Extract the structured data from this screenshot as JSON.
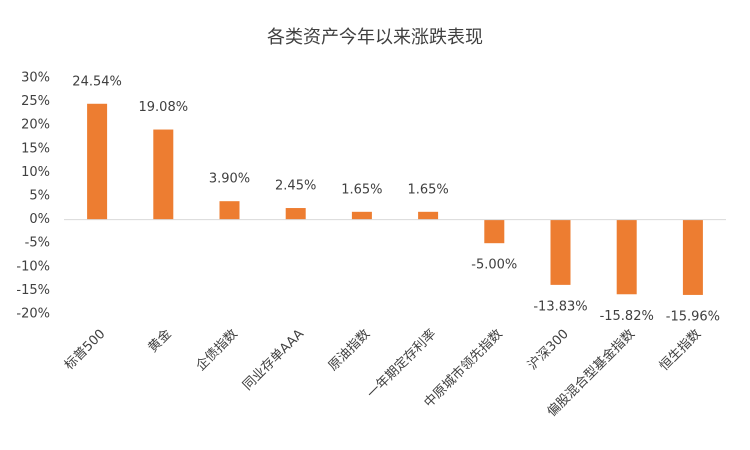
{
  "chart_data": {
    "type": "bar",
    "title": "各类资产今年以来涨跌表现",
    "categories": [
      "标普500",
      "黄金",
      "企债指数",
      "同业存单AAA",
      "原油指数",
      "一年期定存利率",
      "中原城市领先指数",
      "沪深300",
      "偏股混合型基金指数",
      "恒生指数"
    ],
    "values": [
      24.54,
      19.08,
      3.9,
      2.45,
      1.65,
      1.65,
      -5.0,
      -13.83,
      -15.82,
      -15.96
    ],
    "value_labels": [
      "24.54%",
      "19.08%",
      "3.90%",
      "2.45%",
      "1.65%",
      "1.65%",
      "-5.00%",
      "-13.83%",
      "-15.82%",
      "-15.96%"
    ],
    "color": "#ed7d31",
    "ylim": [
      -20,
      30
    ],
    "yticks": [
      {
        "value": -20,
        "label": "-20%"
      },
      {
        "value": -15,
        "label": "-15%"
      },
      {
        "value": -10,
        "label": "-10%"
      },
      {
        "value": -5,
        "label": "-5%"
      },
      {
        "value": 0,
        "label": "0%"
      },
      {
        "value": 5,
        "label": "5%"
      },
      {
        "value": 10,
        "label": "10%"
      },
      {
        "value": 15,
        "label": "15%"
      },
      {
        "value": 20,
        "label": "20%"
      },
      {
        "value": 25,
        "label": "25%"
      },
      {
        "value": 30,
        "label": "30%"
      }
    ],
    "grid": false
  }
}
